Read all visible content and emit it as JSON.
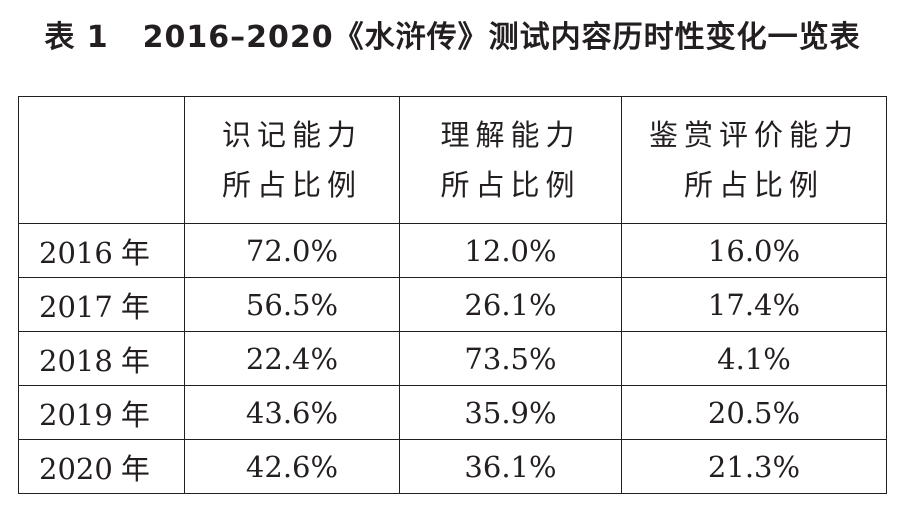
{
  "caption": {
    "label": "表 1",
    "title": "2016–2020《水浒传》测试内容历时性变化一览表"
  },
  "table": {
    "corner": "",
    "headers": [
      {
        "line1": "识记能力",
        "line2": "所占比例"
      },
      {
        "line1": "理解能力",
        "line2": "所占比例"
      },
      {
        "line1": "鉴赏评价能力",
        "line2": "所占比例"
      }
    ],
    "rows": [
      {
        "year": "2016",
        "unit": "年",
        "values": [
          "72.0%",
          "12.0%",
          "16.0%"
        ]
      },
      {
        "year": "2017",
        "unit": "年",
        "values": [
          "56.5%",
          "26.1%",
          "17.4%"
        ]
      },
      {
        "year": "2018",
        "unit": "年",
        "values": [
          "22.4%",
          "73.5%",
          "4.1%"
        ]
      },
      {
        "year": "2019",
        "unit": "年",
        "values": [
          "43.6%",
          "35.9%",
          "20.5%"
        ]
      },
      {
        "year": "2020",
        "unit": "年",
        "values": [
          "42.6%",
          "36.1%",
          "21.3%"
        ]
      }
    ]
  }
}
